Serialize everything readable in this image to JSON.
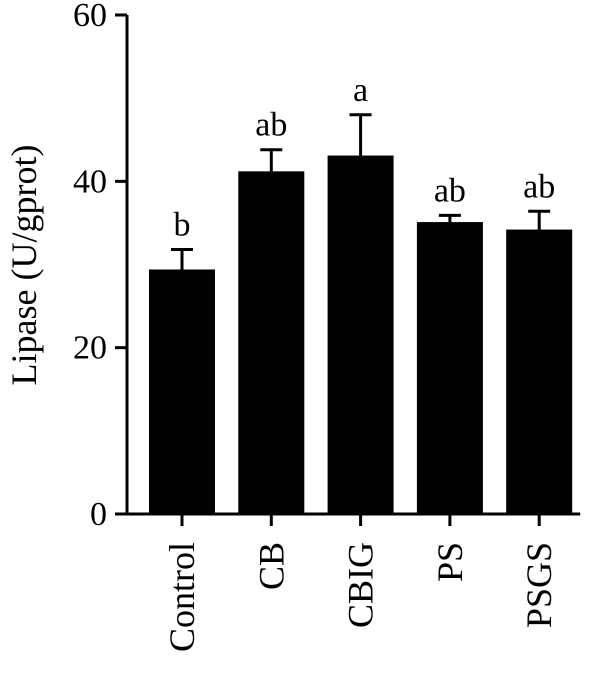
{
  "chart_data": {
    "type": "bar",
    "title": "",
    "xlabel": "",
    "ylabel": "Lipase (U/gprot)",
    "ylim": [
      0,
      60
    ],
    "yticks": [
      0,
      20,
      40,
      60
    ],
    "categories": [
      "Control",
      "CB",
      "CBIG",
      "PS",
      "PSGS"
    ],
    "values": [
      29.4,
      41.2,
      43.1,
      35.1,
      34.2
    ],
    "errors": [
      2.4,
      2.6,
      4.9,
      0.8,
      2.2
    ],
    "significance": [
      "b",
      "ab",
      "a",
      "ab",
      "ab"
    ],
    "bar_color": "#000000",
    "grid": false,
    "legend": "none"
  }
}
